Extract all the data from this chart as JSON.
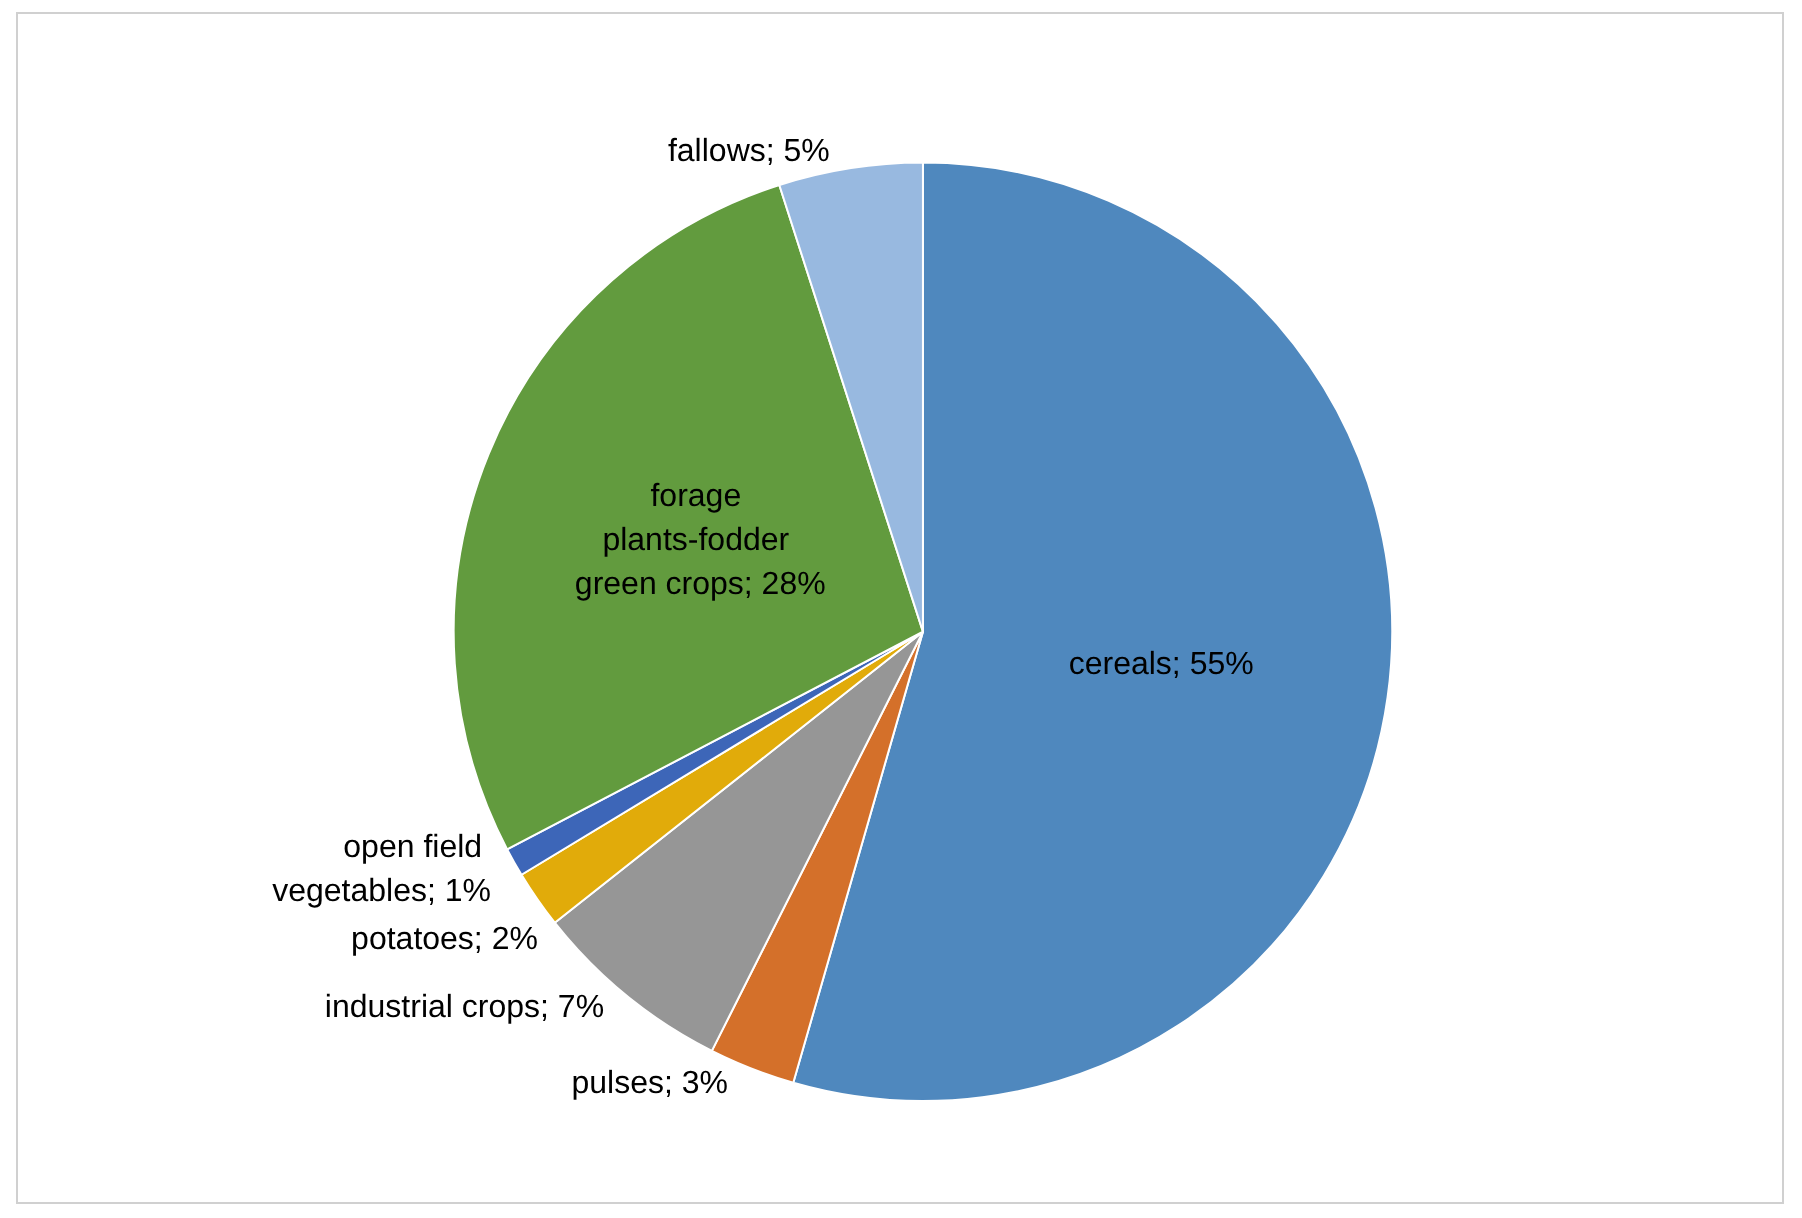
{
  "chart_data": {
    "type": "pie",
    "categories": [
      "cereals",
      "pulses",
      "industrial crops",
      "potatoes",
      "open field vegetables",
      "forage plants-fodder green crops",
      "fallows"
    ],
    "values": [
      55,
      3,
      7,
      2,
      1,
      28,
      5
    ],
    "value_labels": [
      "; 55%",
      "; 3%",
      "; 7%",
      "; 2%",
      "; 1%",
      "; 28%",
      "; 5%"
    ],
    "colors": [
      "#4f88be",
      "#d4702a",
      "#969696",
      "#e1ab0a",
      "#3d66b8",
      "#629b3e",
      "#98b9e0"
    ],
    "legend": false
  }
}
